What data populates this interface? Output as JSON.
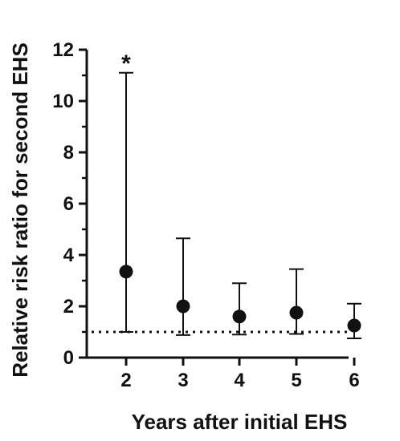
{
  "chart_data": {
    "type": "scatter",
    "title": "",
    "xlabel": "Years after initial EHS",
    "ylabel": "Relative risk ratio for second EHS",
    "categories": [
      "2",
      "3",
      "4",
      "5",
      "6"
    ],
    "values": [
      3.35,
      2.0,
      1.6,
      1.75,
      1.25
    ],
    "error_low": [
      1.0,
      0.88,
      0.9,
      0.92,
      0.75
    ],
    "error_high": [
      11.1,
      4.65,
      2.9,
      3.45,
      2.1
    ],
    "ylim": [
      0,
      12
    ],
    "yticks": [
      "0",
      "2",
      "4",
      "6",
      "8",
      "10",
      "12"
    ],
    "reference_line": 1.0,
    "annotations": [
      {
        "category": "2",
        "text": "*"
      }
    ],
    "grid": false,
    "legend": "none",
    "colors": {
      "marker": "#111111",
      "axis": "#111111"
    }
  }
}
